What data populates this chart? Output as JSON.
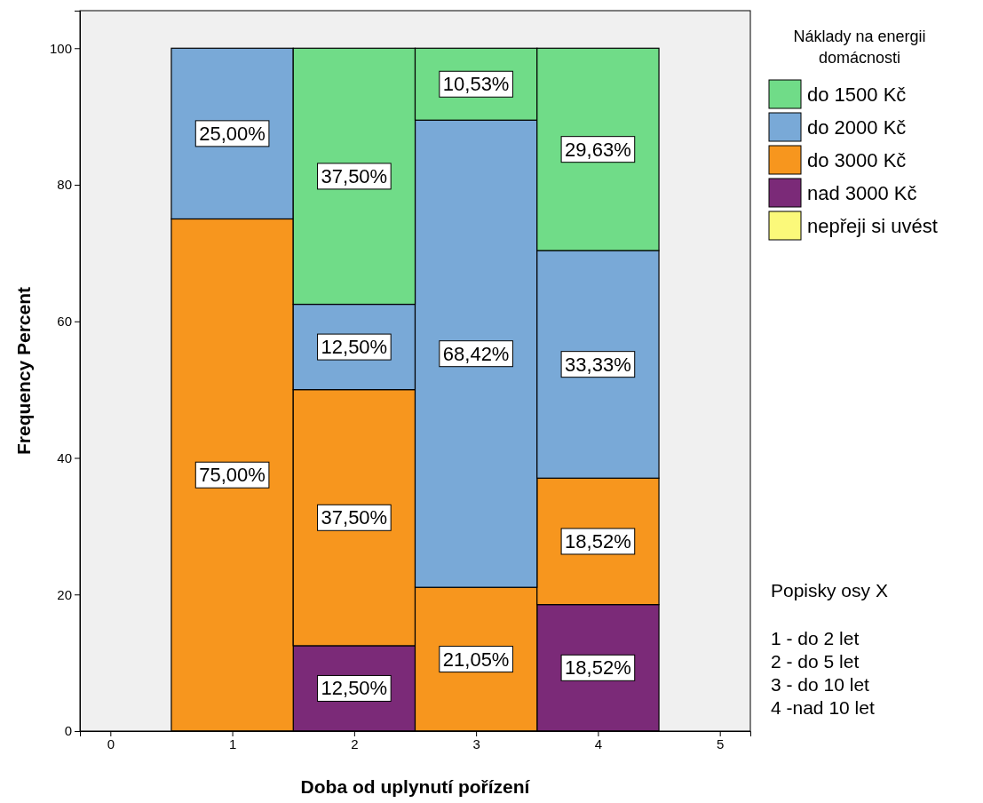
{
  "chart_data": {
    "type": "bar",
    "stacked": true,
    "x": [
      1,
      2,
      3,
      4
    ],
    "xlim": [
      -0.25,
      5.25
    ],
    "xticks": [
      0,
      1,
      2,
      3,
      4,
      5
    ],
    "ylim": [
      0,
      105.5
    ],
    "yticks": [
      0,
      20,
      40,
      60,
      80,
      100
    ],
    "xlabel": "Doba od uplynutí pořízení",
    "ylabel": "Frequency Percent",
    "legend_title": "Náklady na energii domácnosti",
    "legend": "top right",
    "grid": false,
    "series": [
      {
        "name": "nepřeji si uvést",
        "color": "#fbf97a",
        "values": [
          null,
          null,
          null,
          null
        ],
        "value_labels": [
          null,
          null,
          null,
          null
        ]
      },
      {
        "name": "nad 3000 Kč",
        "color": "#7b2a78",
        "values": [
          null,
          12.5,
          null,
          18.52
        ],
        "value_labels": [
          null,
          "12,50%",
          null,
          "18,52%"
        ]
      },
      {
        "name": "do 3000 Kč",
        "color": "#f7961e",
        "values": [
          75,
          37.5,
          21.05,
          18.52
        ],
        "value_labels": [
          "75,00%",
          "37,50%",
          "21,05%",
          "18,52%"
        ]
      },
      {
        "name": "do 2000 Kč",
        "color": "#79a9d7",
        "values": [
          25,
          12.5,
          68.42,
          33.33
        ],
        "value_labels": [
          "25,00%",
          "12,50%",
          "68,42%",
          "33,33%"
        ]
      },
      {
        "name": "do 1500 Kč",
        "color": "#70dc88",
        "values": [
          null,
          37.5,
          10.53,
          29.63
        ],
        "value_labels": [
          null,
          "37,50%",
          "10,53%",
          "29,63%"
        ]
      }
    ],
    "annotations": [
      "Popisky osy X",
      "1 - do 2 let",
      "2 - do 5 let",
      "3 - do 10 let",
      "4 -nad 10 let"
    ]
  }
}
